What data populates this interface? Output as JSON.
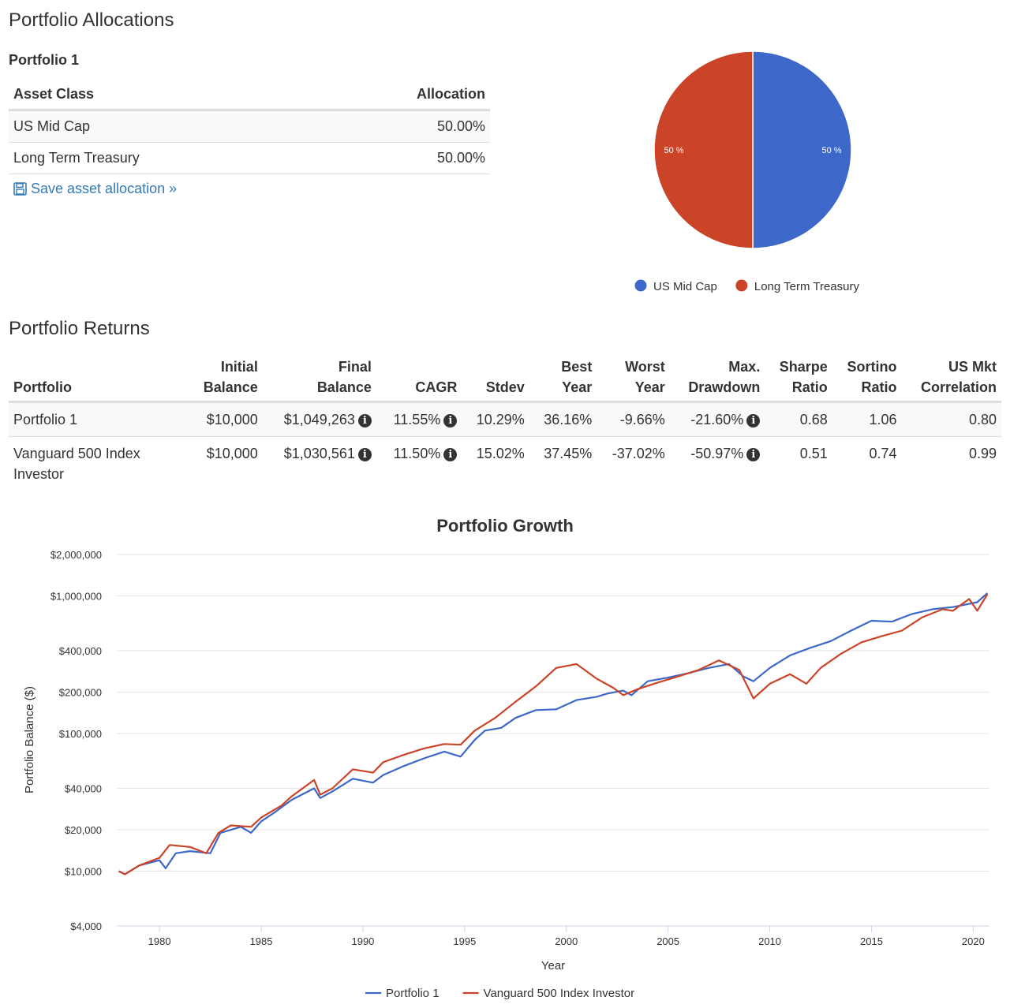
{
  "allocations": {
    "heading": "Portfolio Allocations",
    "portfolio_name": "Portfolio 1",
    "columns": [
      "Asset Class",
      "Allocation"
    ],
    "rows": [
      {
        "asset": "US Mid Cap",
        "allocation": "50.00%"
      },
      {
        "asset": "Long Term Treasury",
        "allocation": "50.00%"
      }
    ],
    "save_link": "Save asset allocation »"
  },
  "returns": {
    "heading": "Portfolio Returns",
    "columns": [
      [
        "",
        "Portfolio"
      ],
      [
        "Initial",
        "Balance"
      ],
      [
        "Final",
        "Balance"
      ],
      [
        "",
        "CAGR"
      ],
      [
        "",
        "Stdev"
      ],
      [
        "Best",
        "Year"
      ],
      [
        "Worst",
        "Year"
      ],
      [
        "Max.",
        "Drawdown"
      ],
      [
        "Sharpe",
        "Ratio"
      ],
      [
        "Sortino",
        "Ratio"
      ],
      [
        "US Mkt",
        "Correlation"
      ]
    ],
    "rows": [
      {
        "portfolio": "Portfolio 1",
        "initial": "$10,000",
        "final": "$1,049,263",
        "cagr": "11.55%",
        "stdev": "10.29%",
        "best": "36.16%",
        "worst": "-9.66%",
        "drawdown": "-21.60%",
        "sharpe": "0.68",
        "sortino": "1.06",
        "correlation": "0.80"
      },
      {
        "portfolio": "Vanguard 500 Index Investor",
        "initial": "$10,000",
        "final": "$1,030,561",
        "cagr": "11.50%",
        "stdev": "15.02%",
        "best": "37.45%",
        "worst": "-37.02%",
        "drawdown": "-50.97%",
        "sharpe": "0.51",
        "sortino": "0.74",
        "correlation": "0.99"
      }
    ]
  },
  "chart_data": [
    {
      "type": "pie",
      "slices": [
        {
          "label": "US Mid Cap",
          "value": 50,
          "display": "50 %",
          "color": "#3d68c9"
        },
        {
          "label": "Long Term Treasury",
          "value": 50,
          "display": "50 %",
          "color": "#cb4427"
        }
      ],
      "legend": "bottom"
    },
    {
      "type": "line",
      "title": "Portfolio Growth",
      "xlabel": "Year",
      "ylabel": "Portfolio Balance ($)",
      "yscale": "log",
      "ylim": [
        4000,
        2000000
      ],
      "xlim": [
        1977.9,
        2020.8
      ],
      "yticks": [
        4000,
        10000,
        20000,
        40000,
        100000,
        200000,
        400000,
        1000000,
        2000000
      ],
      "ytick_labels": [
        "$4,000",
        "$10,000",
        "$20,000",
        "$40,000",
        "$100,000",
        "$200,000",
        "$400,000",
        "$1,000,000",
        "$2,000,000"
      ],
      "xticks": [
        1980,
        1985,
        1990,
        1995,
        2000,
        2005,
        2010,
        2015,
        2020
      ],
      "xtick_labels": [
        "1980",
        "1985",
        "1990",
        "1995",
        "2000",
        "2005",
        "2010",
        "2015",
        "2020"
      ],
      "legend": "bottom",
      "grid": true,
      "series": [
        {
          "name": "Portfolio 1",
          "color": "#3d68c9",
          "points": [
            [
              1978,
              10000
            ],
            [
              1978.3,
              9500
            ],
            [
              1979,
              11000
            ],
            [
              1980,
              12000
            ],
            [
              1980.3,
              10500
            ],
            [
              1980.8,
              13500
            ],
            [
              1981.5,
              14000
            ],
            [
              1982.5,
              13500
            ],
            [
              1983,
              19000
            ],
            [
              1984,
              21000
            ],
            [
              1984.5,
              19000
            ],
            [
              1985,
              23000
            ],
            [
              1985.7,
              27000
            ],
            [
              1986.5,
              33000
            ],
            [
              1987.6,
              40000
            ],
            [
              1987.9,
              34000
            ],
            [
              1988.5,
              38000
            ],
            [
              1989.5,
              47000
            ],
            [
              1990.5,
              44000
            ],
            [
              1991,
              50000
            ],
            [
              1992,
              58000
            ],
            [
              1993,
              66000
            ],
            [
              1994,
              74000
            ],
            [
              1994.8,
              68000
            ],
            [
              1995.5,
              90000
            ],
            [
              1996,
              105000
            ],
            [
              1996.8,
              110000
            ],
            [
              1997.5,
              130000
            ],
            [
              1998.5,
              148000
            ],
            [
              1999.5,
              150000
            ],
            [
              2000.5,
              175000
            ],
            [
              2001.5,
              185000
            ],
            [
              2002,
              195000
            ],
            [
              2002.8,
              205000
            ],
            [
              2003.2,
              190000
            ],
            [
              2004,
              240000
            ],
            [
              2005,
              255000
            ],
            [
              2006,
              275000
            ],
            [
              2007,
              300000
            ],
            [
              2008,
              320000
            ],
            [
              2008.7,
              260000
            ],
            [
              2009.2,
              240000
            ],
            [
              2010,
              300000
            ],
            [
              2011,
              370000
            ],
            [
              2012,
              420000
            ],
            [
              2013,
              470000
            ],
            [
              2014,
              560000
            ],
            [
              2015,
              660000
            ],
            [
              2016,
              650000
            ],
            [
              2017,
              740000
            ],
            [
              2018,
              800000
            ],
            [
              2019,
              830000
            ],
            [
              2020.2,
              900000
            ],
            [
              2020.7,
              1049263
            ]
          ]
        },
        {
          "name": "Vanguard 500 Index Investor",
          "color": "#cb4427",
          "points": [
            [
              1978,
              10000
            ],
            [
              1978.3,
              9500
            ],
            [
              1979,
              11000
            ],
            [
              1980,
              12500
            ],
            [
              1980.5,
              15500
            ],
            [
              1981.5,
              15000
            ],
            [
              1982.3,
              13500
            ],
            [
              1982.9,
              19000
            ],
            [
              1983.5,
              21500
            ],
            [
              1984.5,
              21000
            ],
            [
              1985,
              24500
            ],
            [
              1986,
              30000
            ],
            [
              1986.5,
              35000
            ],
            [
              1987.6,
              46000
            ],
            [
              1987.9,
              36000
            ],
            [
              1988.5,
              40000
            ],
            [
              1989.5,
              55000
            ],
            [
              1990.5,
              52000
            ],
            [
              1991,
              62000
            ],
            [
              1992,
              70000
            ],
            [
              1993,
              78000
            ],
            [
              1994,
              84000
            ],
            [
              1994.8,
              83000
            ],
            [
              1995.5,
              105000
            ],
            [
              1996.5,
              130000
            ],
            [
              1997.5,
              170000
            ],
            [
              1998.5,
              220000
            ],
            [
              1999.5,
              300000
            ],
            [
              2000.5,
              320000
            ],
            [
              2001.5,
              250000
            ],
            [
              2002.3,
              215000
            ],
            [
              2002.8,
              190000
            ],
            [
              2003.5,
              210000
            ],
            [
              2004.5,
              235000
            ],
            [
              2005.5,
              260000
            ],
            [
              2006.5,
              290000
            ],
            [
              2007.5,
              340000
            ],
            [
              2008.5,
              290000
            ],
            [
              2009.2,
              180000
            ],
            [
              2010,
              230000
            ],
            [
              2011,
              270000
            ],
            [
              2011.8,
              230000
            ],
            [
              2012.5,
              300000
            ],
            [
              2013.5,
              380000
            ],
            [
              2014.5,
              460000
            ],
            [
              2015.5,
              510000
            ],
            [
              2016.5,
              560000
            ],
            [
              2017.5,
              700000
            ],
            [
              2018.5,
              800000
            ],
            [
              2019,
              780000
            ],
            [
              2019.8,
              950000
            ],
            [
              2020.2,
              780000
            ],
            [
              2020.7,
              1030561
            ]
          ]
        }
      ]
    }
  ]
}
